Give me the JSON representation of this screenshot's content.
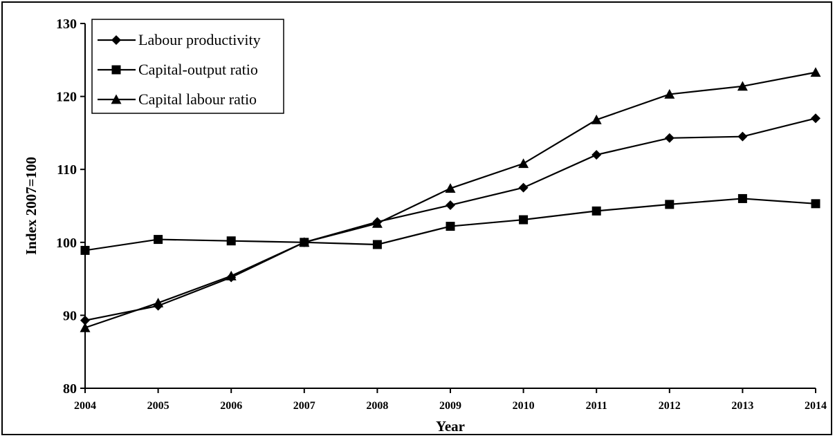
{
  "chart_data": {
    "type": "line",
    "title": "",
    "xlabel": "Year",
    "ylabel": "Index 2007=100",
    "x": [
      "2004",
      "2005",
      "2006",
      "2007",
      "2008",
      "2009",
      "2010",
      "2011",
      "2012",
      "2013",
      "2014"
    ],
    "ylim": [
      80,
      130
    ],
    "yticks": [
      "80",
      "90",
      "100",
      "110",
      "120",
      "130"
    ],
    "grid": false,
    "legend_position": "top-left",
    "series": [
      {
        "name": "Labour productivity",
        "marker": "diamond",
        "color": "#000000",
        "values": [
          89.3,
          91.3,
          95.2,
          100.0,
          102.8,
          105.1,
          107.5,
          112.0,
          114.3,
          114.5,
          117.0
        ]
      },
      {
        "name": "Capital-output ratio",
        "marker": "square",
        "color": "#000000",
        "values": [
          98.9,
          100.4,
          100.2,
          100.0,
          99.7,
          102.2,
          103.1,
          104.3,
          105.2,
          106.0,
          105.3
        ]
      },
      {
        "name": "Capital labour ratio",
        "marker": "triangle",
        "color": "#000000",
        "values": [
          88.3,
          91.7,
          95.4,
          100.0,
          102.6,
          107.4,
          110.8,
          116.8,
          120.3,
          121.4,
          123.3
        ]
      }
    ]
  }
}
